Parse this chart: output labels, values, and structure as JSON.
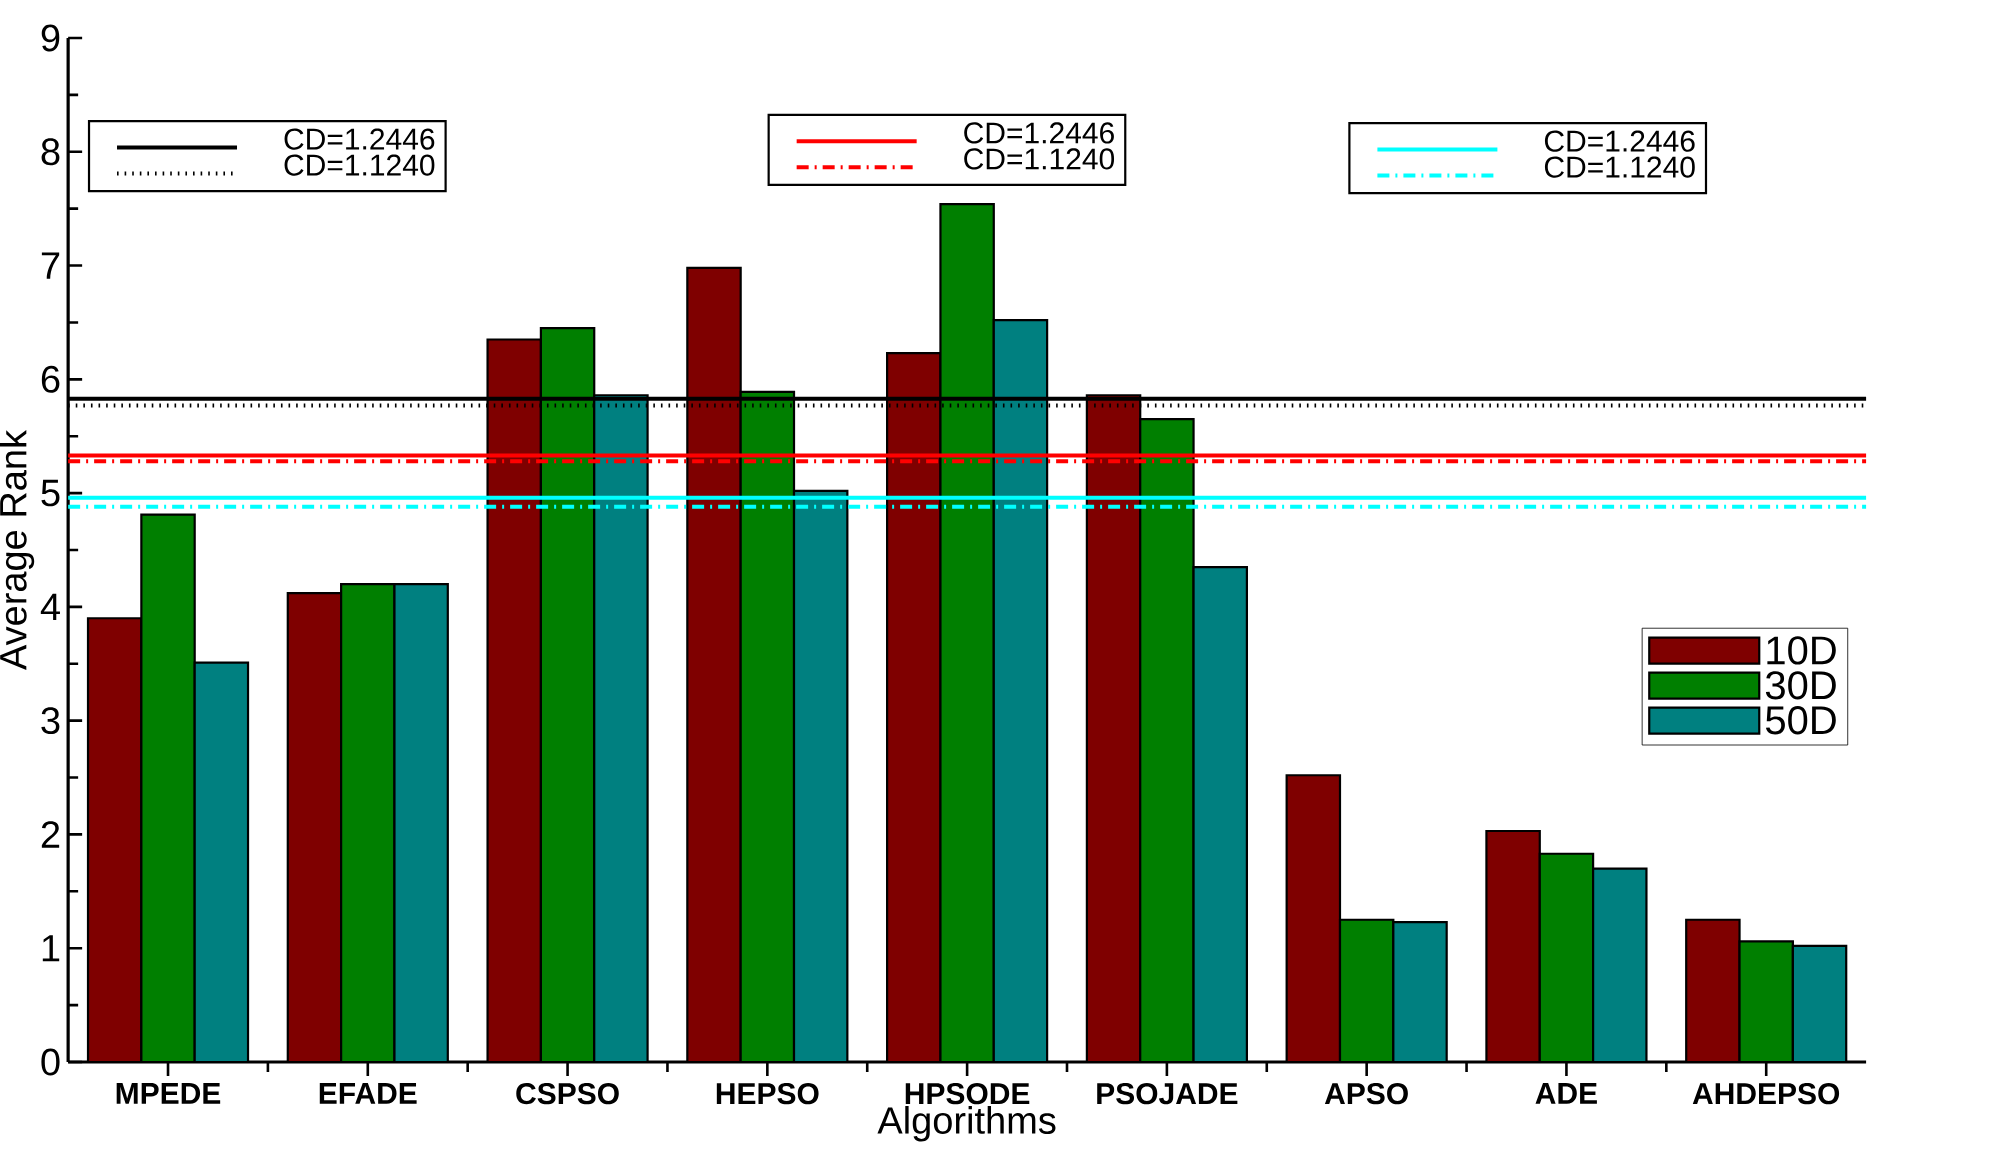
{
  "chart_data": {
    "type": "bar",
    "xlabel": "Algorithms",
    "ylabel": "Average Rank",
    "categories": [
      "MPEDE",
      "EFADE",
      "CSPSO",
      "HEPSO",
      "HPSODE",
      "PSOJADE",
      "APSO",
      "ADE",
      "AHDEPSO"
    ],
    "series": [
      {
        "name": "10D",
        "color": "#7f0000",
        "values": [
          3.9,
          4.12,
          6.35,
          6.98,
          6.23,
          5.86,
          2.52,
          2.03,
          1.25
        ]
      },
      {
        "name": "30D",
        "color": "#007f00",
        "values": [
          4.81,
          4.2,
          6.45,
          5.89,
          7.54,
          5.65,
          1.25,
          1.83,
          1.06
        ]
      },
      {
        "name": "50D",
        "color": "#008080",
        "values": [
          3.51,
          4.2,
          5.86,
          5.02,
          6.52,
          4.35,
          1.23,
          1.7,
          1.02
        ]
      }
    ],
    "ylim": [
      0,
      9
    ],
    "yticks": [
      0,
      1,
      2,
      3,
      4,
      5,
      6,
      7,
      8,
      9
    ],
    "ref_lines": [
      {
        "axis": "y",
        "value": 5.83,
        "color": "#000000",
        "line_style": "solid"
      },
      {
        "axis": "y",
        "value": 5.77,
        "color": "#000000",
        "line_style": "dotted"
      },
      {
        "axis": "y",
        "value": 5.33,
        "color": "#ff0000",
        "line_style": "solid"
      },
      {
        "axis": "y",
        "value": 5.28,
        "color": "#ff0000",
        "line_style": "dashed"
      },
      {
        "axis": "y",
        "value": 4.96,
        "color": "#00ffff",
        "line_style": "solid"
      },
      {
        "axis": "y",
        "value": 4.88,
        "color": "#00ffff",
        "line_style": "dashed"
      }
    ],
    "annotations": [
      "CD=1.2446",
      "CD=1.1240",
      "CD=1.2446",
      "CD=1.1240",
      "CD=1.2446",
      "CD=1.1240"
    ],
    "legend": "right",
    "grid": false
  }
}
